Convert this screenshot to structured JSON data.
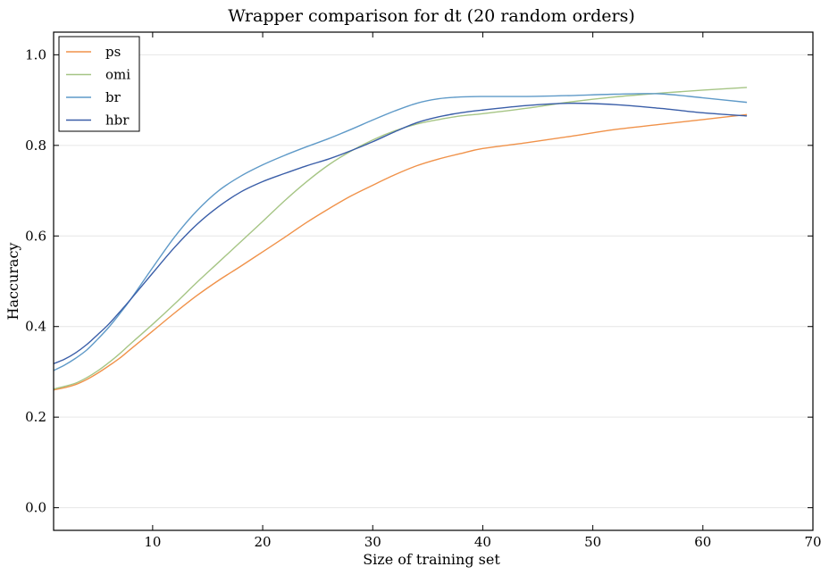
{
  "chart_data": {
    "type": "line",
    "title": "Wrapper comparison for dt (20 random orders)",
    "xlabel": "Size of training set",
    "ylabel": "Haccuracy",
    "xlim": [
      1,
      70
    ],
    "ylim": [
      -0.05,
      1.05
    ],
    "xticks": [
      10,
      20,
      30,
      40,
      50,
      60,
      70
    ],
    "yticks": [
      0.0,
      0.2,
      0.4,
      0.6,
      0.8,
      1.0
    ],
    "xtick_labels": [
      "10",
      "20",
      "30",
      "40",
      "50",
      "60",
      "70"
    ],
    "ytick_labels": [
      "0.0",
      "0.2",
      "0.4",
      "0.6",
      "0.8",
      "1.0"
    ],
    "grid": true,
    "legend_position": "top-left",
    "x": [
      1,
      2,
      3,
      4,
      5,
      6,
      7,
      8,
      10,
      12,
      14,
      16,
      18,
      20,
      22,
      24,
      26,
      28,
      30,
      32,
      34,
      36,
      38,
      40,
      44,
      48,
      52,
      56,
      60,
      64
    ],
    "series": [
      {
        "name": "ps",
        "color": "#f0924a",
        "values": [
          0.26,
          0.265,
          0.272,
          0.283,
          0.297,
          0.313,
          0.33,
          0.35,
          0.39,
          0.43,
          0.468,
          0.502,
          0.533,
          0.565,
          0.597,
          0.63,
          0.66,
          0.688,
          0.712,
          0.735,
          0.755,
          0.77,
          0.782,
          0.793,
          0.806,
          0.82,
          0.835,
          0.846,
          0.857,
          0.868
        ]
      },
      {
        "name": "omi",
        "color": "#a6c585",
        "values": [
          0.262,
          0.268,
          0.275,
          0.287,
          0.302,
          0.32,
          0.34,
          0.362,
          0.405,
          0.45,
          0.497,
          0.542,
          0.587,
          0.632,
          0.678,
          0.72,
          0.757,
          0.787,
          0.812,
          0.832,
          0.847,
          0.857,
          0.865,
          0.87,
          0.882,
          0.896,
          0.907,
          0.915,
          0.922,
          0.928
        ]
      },
      {
        "name": "br",
        "color": "#5f9ac8",
        "values": [
          0.303,
          0.315,
          0.33,
          0.348,
          0.372,
          0.398,
          0.428,
          0.46,
          0.53,
          0.598,
          0.655,
          0.7,
          0.732,
          0.757,
          0.778,
          0.797,
          0.815,
          0.835,
          0.856,
          0.876,
          0.893,
          0.903,
          0.907,
          0.908,
          0.908,
          0.91,
          0.913,
          0.914,
          0.905,
          0.895
        ]
      },
      {
        "name": "hbr",
        "color": "#3a5ea8",
        "values": [
          0.318,
          0.328,
          0.342,
          0.36,
          0.382,
          0.405,
          0.432,
          0.46,
          0.518,
          0.575,
          0.625,
          0.665,
          0.697,
          0.72,
          0.738,
          0.755,
          0.77,
          0.788,
          0.808,
          0.83,
          0.85,
          0.863,
          0.872,
          0.878,
          0.888,
          0.893,
          0.89,
          0.882,
          0.872,
          0.865
        ]
      }
    ]
  }
}
